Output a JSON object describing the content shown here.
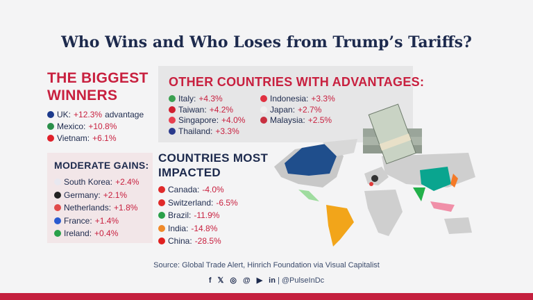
{
  "title": "Who Wins and Who Loses from Trump’s Tariffs?",
  "biggest": {
    "heading": [
      "THE BIGGEST",
      "WINNERS"
    ],
    "items": [
      {
        "flag": "uk",
        "country": "UK: ",
        "value": "+12.3%",
        "suffix": " advantage"
      },
      {
        "flag": "mexico",
        "country": "Mexico: ",
        "value": "+10.8%"
      },
      {
        "flag": "vietnam",
        "country": "Vietnam: ",
        "value": "+6.1%"
      }
    ]
  },
  "moderate": {
    "heading": "MODERATE GAINS:",
    "items": [
      {
        "flag": "south-korea",
        "country": "South Korea: ",
        "value": "+2.4%"
      },
      {
        "flag": "germany",
        "country": "Germany: ",
        "value": "+2.1%"
      },
      {
        "flag": "netherlands",
        "country": "Netherlands: ",
        "value": "+1.8%"
      },
      {
        "flag": "france",
        "country": "France: ",
        "value": "+1.4%"
      },
      {
        "flag": "ireland",
        "country": "Ireland: ",
        "value": "+0.4%"
      }
    ]
  },
  "other": {
    "heading": "OTHER COUNTRIES WITH ADVANTAGES:",
    "items": [
      {
        "flag": "italy",
        "country": "Italy: ",
        "value": "+4.3%"
      },
      {
        "flag": "taiwan",
        "country": "Taiwan: ",
        "value": "+4.2%"
      },
      {
        "flag": "singapore",
        "country": "Singapore: ",
        "value": "+4.0%"
      },
      {
        "flag": "thailand",
        "country": "Thailand: ",
        "value": "+3.3%"
      },
      {
        "flag": "indonesia",
        "country": "Indonesia: ",
        "value": "+3.3%"
      },
      {
        "flag": "japan",
        "country": "Japan: ",
        "value": "+2.7%"
      },
      {
        "flag": "malaysia",
        "country": "Malaysia: ",
        "value": "+2.5%"
      }
    ]
  },
  "impacted": {
    "heading": [
      "COUNTRIES MOST",
      "IMPACTED"
    ],
    "items": [
      {
        "flag": "canada",
        "country": "Canada: ",
        "value": "-4.0%"
      },
      {
        "flag": "switzerland",
        "country": "Switzerland: ",
        "value": "-6.5%"
      },
      {
        "flag": "brazil",
        "country": "Brazil: ",
        "value": "-11.9%"
      },
      {
        "flag": "india",
        "country": "India: ",
        "value": "-14.8%"
      },
      {
        "flag": "china",
        "country": "China: ",
        "value": "-28.5%"
      }
    ]
  },
  "source": "Source: Global Trade Alert, Hinrich Foundation via Visual Capitalist",
  "social": {
    "icons": [
      "facebook-icon",
      "x-icon",
      "instagram-icon",
      "threads-icon",
      "youtube-icon",
      "linkedin-icon"
    ],
    "handle": "| @PulseInDc"
  },
  "colors": {
    "red": "#c8203f",
    "navy": "#1d2a4d",
    "bar": "#c41f3e"
  }
}
